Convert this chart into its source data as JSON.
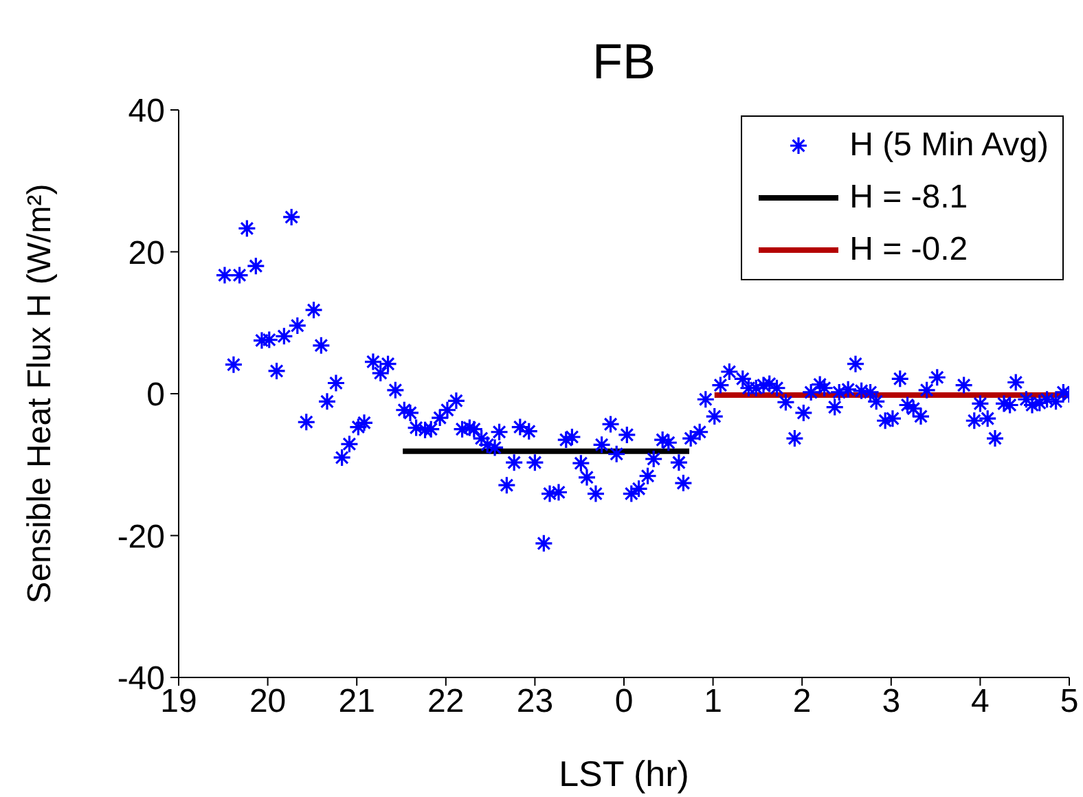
{
  "chart_data": {
    "type": "scatter",
    "title": "FB",
    "xlabel": "LST (hr)",
    "ylabel": "Sensible Heat Flux H (W/m²)",
    "xlim": [
      "--01-01T19:00",
      "--01-02T05:00"
    ],
    "xticks": [
      {
        "value": "--01-01T19:00",
        "label": "19"
      },
      {
        "value": "--01-01T20:00",
        "label": "20"
      },
      {
        "value": "--01-01T21:00",
        "label": "21"
      },
      {
        "value": "--01-01T22:00",
        "label": "22"
      },
      {
        "value": "--01-01T23:00",
        "label": "23"
      },
      {
        "value": "--01-02T00:00",
        "label": "0"
      },
      {
        "value": "--01-02T01:00",
        "label": "1"
      },
      {
        "value": "--01-02T02:00",
        "label": "2"
      },
      {
        "value": "--01-02T03:00",
        "label": "3"
      },
      {
        "value": "--01-02T04:00",
        "label": "4"
      },
      {
        "value": "--01-02T05:00",
        "label": "5"
      }
    ],
    "ylim": [
      -40,
      40
    ],
    "yticks": [
      -40,
      -20,
      0,
      20,
      40
    ],
    "grid": false,
    "legend": "top right",
    "series": [
      {
        "name": "H (5 Min Avg)",
        "marker": "cross",
        "color": "#0000ff",
        "x": [
          "--01-01T19:31",
          "--01-01T19:37",
          "--01-01T19:41",
          "--01-01T19:46",
          "--01-01T19:52",
          "--01-01T19:56",
          "--01-01T20:01",
          "--01-01T20:06",
          "--01-01T20:11",
          "--01-01T20:16",
          "--01-01T20:20",
          "--01-01T20:26",
          "--01-01T20:31",
          "--01-01T20:36",
          "--01-01T20:40",
          "--01-01T20:46",
          "--01-01T20:50",
          "--01-01T20:55",
          "--01-01T21:01",
          "--01-01T21:05",
          "--01-01T21:11",
          "--01-01T21:16",
          "--01-01T21:21",
          "--01-01T21:26",
          "--01-01T21:32",
          "--01-01T21:36",
          "--01-01T21:40",
          "--01-01T21:46",
          "--01-01T21:50",
          "--01-01T21:56",
          "--01-01T22:01",
          "--01-01T22:07",
          "--01-01T22:11",
          "--01-01T22:16",
          "--01-01T22:19",
          "--01-01T22:24",
          "--01-01T22:28",
          "--01-01T22:33",
          "--01-01T22:36",
          "--01-01T22:41",
          "--01-01T22:46",
          "--01-01T22:50",
          "--01-01T22:56",
          "--01-01T23:00",
          "--01-01T23:06",
          "--01-01T23:10",
          "--01-01T23:16",
          "--01-01T23:21",
          "--01-01T23:25",
          "--01-01T23:31",
          "--01-01T23:35",
          "--01-01T23:41",
          "--01-01T23:45",
          "--01-01T23:51",
          "--01-01T23:55",
          "--01-02T00:02",
          "--01-02T00:05",
          "--01-02T00:10",
          "--01-02T00:16",
          "--01-02T00:20",
          "--01-02T00:26",
          "--01-02T00:30",
          "--01-02T00:37",
          "--01-02T00:40",
          "--01-02T00:45",
          "--01-02T00:51",
          "--01-02T00:55",
          "--01-02T01:01",
          "--01-02T01:05",
          "--01-02T01:11",
          "--01-02T01:20",
          "--01-02T01:24",
          "--01-02T01:29",
          "--01-02T01:34",
          "--01-02T01:38",
          "--01-02T01:43",
          "--01-02T01:49",
          "--01-02T01:55",
          "--01-02T02:01",
          "--01-02T02:06",
          "--01-02T02:12",
          "--01-02T02:15",
          "--01-02T02:22",
          "--01-02T02:25",
          "--01-02T02:31",
          "--01-02T02:36",
          "--01-02T02:40",
          "--01-02T02:46",
          "--01-02T02:50",
          "--01-02T02:56",
          "--01-02T03:01",
          "--01-02T03:06",
          "--01-02T03:11",
          "--01-02T03:15",
          "--01-02T03:20",
          "--01-02T03:24",
          "--01-02T03:31",
          "--01-02T03:49",
          "--01-02T03:56",
          "--01-02T04:00",
          "--01-02T04:05",
          "--01-02T04:10",
          "--01-02T04:16",
          "--01-02T04:20",
          "--01-02T04:24",
          "--01-02T04:31",
          "--01-02T04:35",
          "--01-02T04:40",
          "--01-02T04:45",
          "--01-02T04:51",
          "--01-02T04:56",
          "--01-02T05:00"
        ],
        "values": [
          16.7,
          4.1,
          16.7,
          23.3,
          18.0,
          7.5,
          7.6,
          3.2,
          8.1,
          24.9,
          9.6,
          -4.0,
          11.8,
          6.8,
          -1.1,
          1.5,
          -9.0,
          -7.1,
          -4.7,
          -4.1,
          4.5,
          2.9,
          4.2,
          0.5,
          -2.3,
          -2.7,
          -4.8,
          -5.1,
          -5.0,
          -3.4,
          -2.3,
          -1.0,
          -5.0,
          -4.8,
          -5.0,
          -6.3,
          -7.2,
          -7.6,
          -5.4,
          -12.9,
          -9.7,
          -4.7,
          -5.3,
          -9.7,
          -21.1,
          -14.1,
          -13.9,
          -6.5,
          -6.1,
          -9.8,
          -11.8,
          -14.1,
          -7.2,
          -4.3,
          -8.5,
          -5.8,
          -14.1,
          -13.4,
          -11.6,
          -9.2,
          -6.5,
          -6.9,
          -9.7,
          -12.6,
          -6.3,
          -5.4,
          -0.8,
          -3.2,
          1.2,
          3.1,
          2.1,
          0.8,
          0.8,
          1.2,
          1.4,
          0.8,
          -1.2,
          -6.3,
          -2.7,
          0.2,
          1.3,
          0.8,
          -1.9,
          0.2,
          0.6,
          4.2,
          0.4,
          0.2,
          -1.1,
          -3.8,
          -3.5,
          2.1,
          -1.6,
          -2.1,
          -3.2,
          0.5,
          2.3,
          1.2,
          -3.8,
          -1.4,
          -3.5,
          -6.3,
          -1.4,
          -1.6,
          1.6,
          -0.8,
          -1.6,
          -1.3,
          -0.8,
          -1.1,
          0.2,
          -0.1
        ]
      },
      {
        "name": "H = -8.1",
        "type": "line",
        "marker": "none",
        "color": "#000000",
        "x": [
          "--01-01T21:31",
          "--01-02T00:44"
        ],
        "values": [
          -8.1,
          -8.1
        ]
      },
      {
        "name": "H = -0.2",
        "type": "line",
        "marker": "none",
        "color": "#b40000",
        "x": [
          "--01-02T01:01",
          "--01-02T05:00"
        ],
        "values": [
          -0.2,
          -0.2
        ]
      }
    ]
  }
}
